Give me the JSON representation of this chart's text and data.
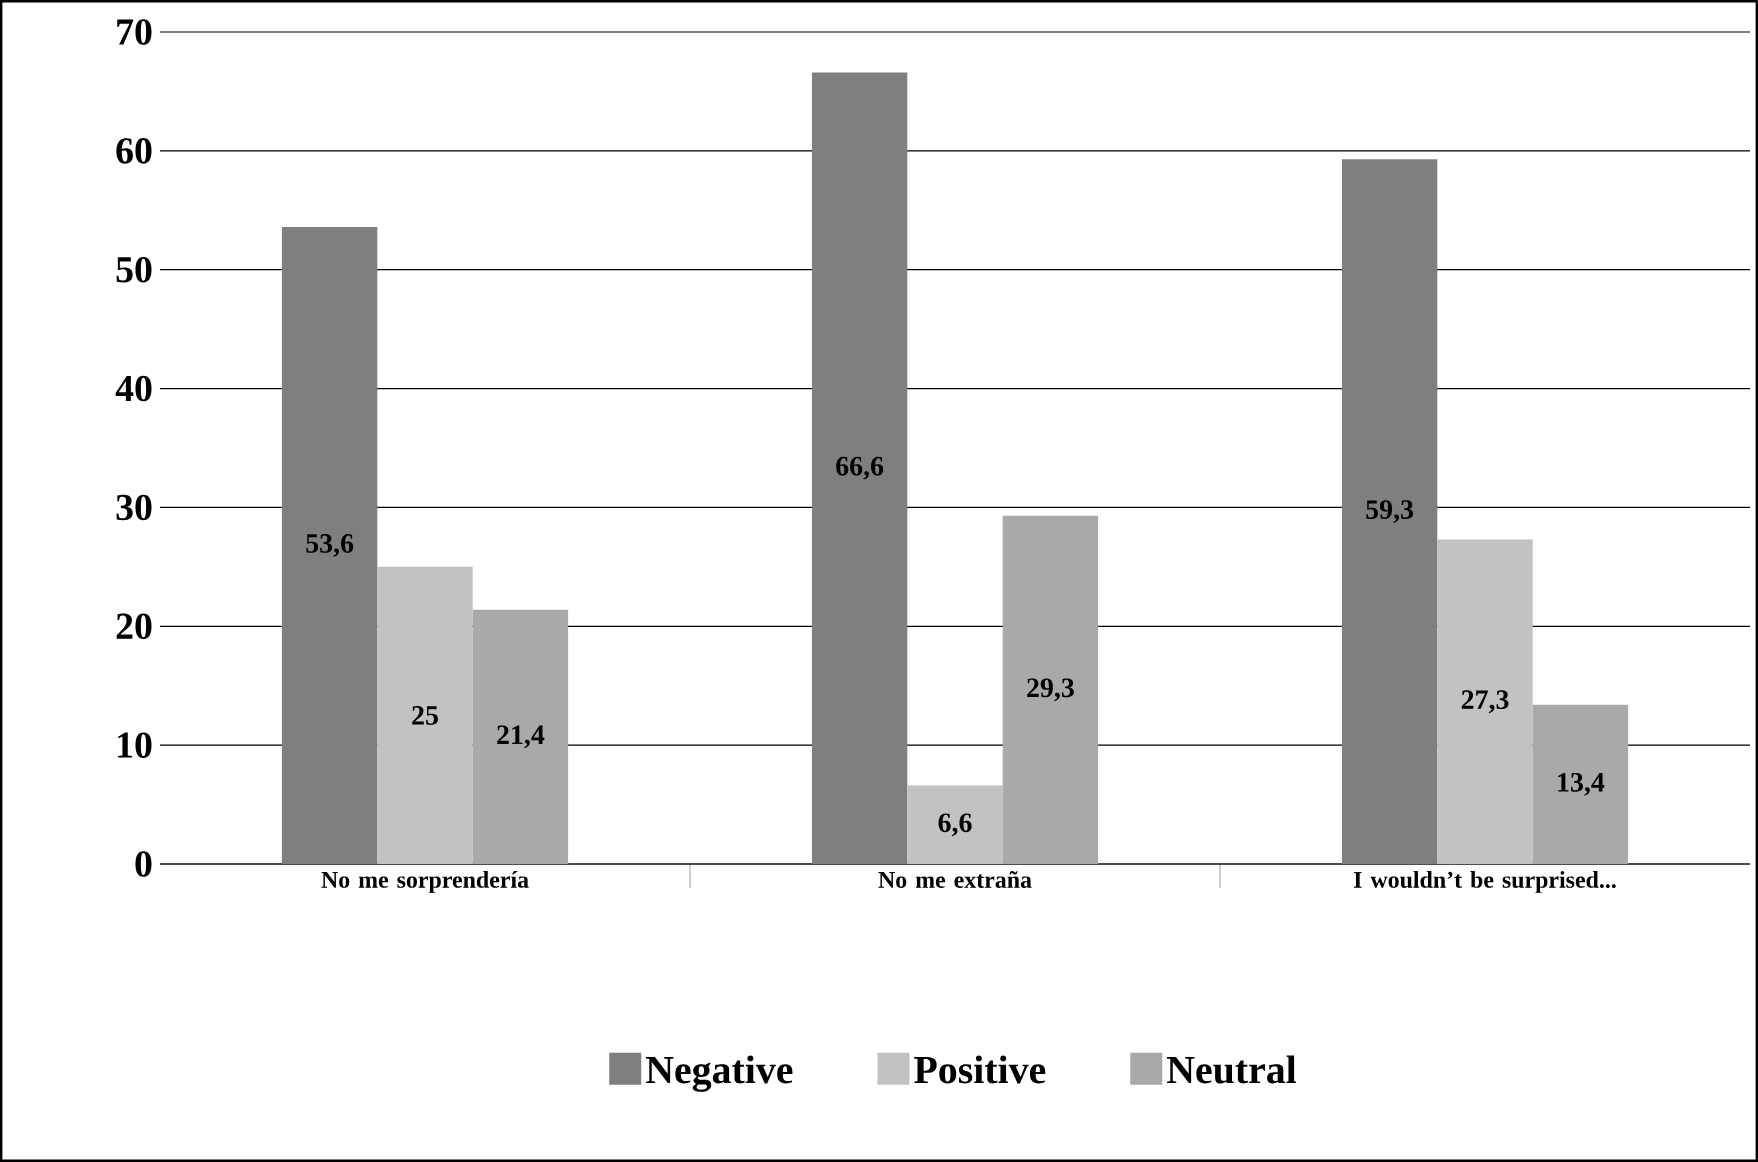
{
  "chart_data": {
    "type": "bar",
    "categories": [
      "No me sorprendería",
      "No me extraña",
      "I wouldn’t be surprised..."
    ],
    "series": [
      {
        "name": "Negative",
        "color": "#7f7f81",
        "values": [
          53.6,
          66.6,
          59.3
        ],
        "value_labels": [
          "53,6",
          "66,6",
          "59,3"
        ]
      },
      {
        "name": "Positive",
        "color": "#c2c2c4",
        "values": [
          25,
          6.6,
          27.3
        ],
        "value_labels": [
          "25",
          "6,6",
          "27,3"
        ]
      },
      {
        "name": "Neutral",
        "color": "#a9a9ab",
        "values": [
          21.4,
          29.3,
          13.4
        ],
        "value_labels": [
          "21,4",
          "29,3",
          "13,4"
        ]
      }
    ],
    "ylim": [
      0,
      70
    ],
    "yticks": [
      0,
      10,
      20,
      30,
      40,
      50,
      60,
      70
    ],
    "grid": "y",
    "legend": "bottom"
  }
}
